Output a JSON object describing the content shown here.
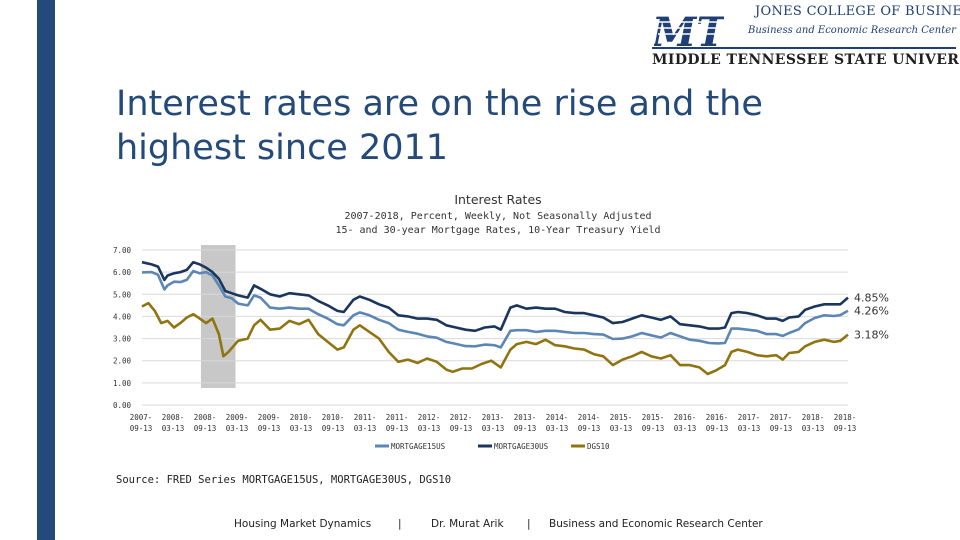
{
  "logo": {
    "line1": "JONES COLLEGE OF BUSINESS",
    "line2": "Business and Economic Research Center",
    "line3": "MIDDLE TENNESSEE STATE UNIVERSITY",
    "mark": "MT"
  },
  "slide": {
    "title_line1": "Interest rates are on the rise and the",
    "title_line2": "highest since 2011"
  },
  "colors": {
    "sidebar": "#244a7a",
    "title": "#244a7a",
    "mortgage15": "#5c86b4",
    "mortgage30": "#1b365d",
    "dgs10": "#8f7410",
    "recession": "#c8c8c8"
  },
  "chart_data": {
    "type": "line",
    "title": "Interest Rates",
    "subtitle1": "2007-2018, Percent, Weekly, Not Seasonally Adjusted",
    "subtitle2": "15- and 30-year Mortgage Rates, 10-Year Treasury Yield",
    "y_ticks": [
      "7.00",
      "6.00",
      "5.00",
      "4.00",
      "3.00",
      "2.00",
      "1.00",
      "0.00"
    ],
    "ylim": [
      0,
      7
    ],
    "xlim": [
      2007.7,
      2018.72
    ],
    "x_ticks": [
      {
        "l1": "2007-",
        "l2": "09-13"
      },
      {
        "l1": "2008-",
        "l2": "03-13"
      },
      {
        "l1": "2008-",
        "l2": "09-13"
      },
      {
        "l1": "2009-",
        "l2": "03-13"
      },
      {
        "l1": "2009-",
        "l2": "09-13"
      },
      {
        "l1": "2010-",
        "l2": "03-13"
      },
      {
        "l1": "2010-",
        "l2": "09-13"
      },
      {
        "l1": "2011-",
        "l2": "03-13"
      },
      {
        "l1": "2011-",
        "l2": "09-13"
      },
      {
        "l1": "2012-",
        "l2": "03-13"
      },
      {
        "l1": "2012-",
        "l2": "09-13"
      },
      {
        "l1": "2013-",
        "l2": "03-13"
      },
      {
        "l1": "2013-",
        "l2": "09-13"
      },
      {
        "l1": "2014-",
        "l2": "03-13"
      },
      {
        "l1": "2014-",
        "l2": "09-13"
      },
      {
        "l1": "2015-",
        "l2": "03-13"
      },
      {
        "l1": "2015-",
        "l2": "09-13"
      },
      {
        "l1": "2016-",
        "l2": "03-13"
      },
      {
        "l1": "2016-",
        "l2": "09-13"
      },
      {
        "l1": "2017-",
        "l2": "03-13"
      },
      {
        "l1": "2017-",
        "l2": "09-13"
      },
      {
        "l1": "2018-",
        "l2": "03-13"
      },
      {
        "l1": "2018-",
        "l2": "09-13"
      }
    ],
    "recession_band": [
      2008.62,
      2009.16
    ],
    "series": [
      {
        "name": "MORTGAGE15US",
        "color_key": "mortgage15",
        "end_label": "4.26%",
        "points": [
          [
            2007.7,
            5.99
          ],
          [
            2007.85,
            6.0
          ],
          [
            2007.95,
            5.88
          ],
          [
            2008.05,
            5.22
          ],
          [
            2008.1,
            5.4
          ],
          [
            2008.2,
            5.57
          ],
          [
            2008.3,
            5.55
          ],
          [
            2008.4,
            5.65
          ],
          [
            2008.5,
            6.05
          ],
          [
            2008.6,
            5.95
          ],
          [
            2008.7,
            6.0
          ],
          [
            2008.8,
            5.85
          ],
          [
            2008.9,
            5.4
          ],
          [
            2009.0,
            4.9
          ],
          [
            2009.1,
            4.82
          ],
          [
            2009.2,
            4.58
          ],
          [
            2009.35,
            4.5
          ],
          [
            2009.45,
            4.95
          ],
          [
            2009.55,
            4.85
          ],
          [
            2009.7,
            4.4
          ],
          [
            2009.85,
            4.35
          ],
          [
            2010.0,
            4.4
          ],
          [
            2010.15,
            4.35
          ],
          [
            2010.3,
            4.35
          ],
          [
            2010.45,
            4.1
          ],
          [
            2010.6,
            3.9
          ],
          [
            2010.75,
            3.65
          ],
          [
            2010.85,
            3.6
          ],
          [
            2011.0,
            4.05
          ],
          [
            2011.1,
            4.18
          ],
          [
            2011.25,
            4.05
          ],
          [
            2011.4,
            3.85
          ],
          [
            2011.55,
            3.7
          ],
          [
            2011.7,
            3.4
          ],
          [
            2011.85,
            3.3
          ],
          [
            2012.0,
            3.22
          ],
          [
            2012.15,
            3.1
          ],
          [
            2012.3,
            3.04
          ],
          [
            2012.45,
            2.85
          ],
          [
            2012.6,
            2.76
          ],
          [
            2012.75,
            2.66
          ],
          [
            2012.9,
            2.65
          ],
          [
            2013.05,
            2.73
          ],
          [
            2013.2,
            2.7
          ],
          [
            2013.3,
            2.6
          ],
          [
            2013.45,
            3.35
          ],
          [
            2013.55,
            3.38
          ],
          [
            2013.7,
            3.38
          ],
          [
            2013.85,
            3.3
          ],
          [
            2014.0,
            3.35
          ],
          [
            2014.15,
            3.35
          ],
          [
            2014.3,
            3.3
          ],
          [
            2014.45,
            3.25
          ],
          [
            2014.6,
            3.25
          ],
          [
            2014.75,
            3.2
          ],
          [
            2014.9,
            3.18
          ],
          [
            2015.05,
            2.98
          ],
          [
            2015.2,
            3.0
          ],
          [
            2015.35,
            3.1
          ],
          [
            2015.5,
            3.25
          ],
          [
            2015.65,
            3.15
          ],
          [
            2015.8,
            3.05
          ],
          [
            2015.95,
            3.25
          ],
          [
            2016.1,
            3.1
          ],
          [
            2016.25,
            2.95
          ],
          [
            2016.4,
            2.9
          ],
          [
            2016.55,
            2.8
          ],
          [
            2016.7,
            2.78
          ],
          [
            2016.8,
            2.8
          ],
          [
            2016.9,
            3.45
          ],
          [
            2017.0,
            3.45
          ],
          [
            2017.15,
            3.4
          ],
          [
            2017.3,
            3.35
          ],
          [
            2017.45,
            3.2
          ],
          [
            2017.6,
            3.2
          ],
          [
            2017.7,
            3.12
          ],
          [
            2017.8,
            3.25
          ],
          [
            2017.95,
            3.42
          ],
          [
            2018.05,
            3.7
          ],
          [
            2018.2,
            3.93
          ],
          [
            2018.35,
            4.05
          ],
          [
            2018.5,
            4.02
          ],
          [
            2018.6,
            4.06
          ],
          [
            2018.72,
            4.26
          ]
        ]
      },
      {
        "name": "MORTGAGE30US",
        "color_key": "mortgage30",
        "end_label": "4.85%",
        "points": [
          [
            2007.7,
            6.45
          ],
          [
            2007.85,
            6.35
          ],
          [
            2007.95,
            6.25
          ],
          [
            2008.05,
            5.65
          ],
          [
            2008.1,
            5.85
          ],
          [
            2008.2,
            5.95
          ],
          [
            2008.3,
            6.0
          ],
          [
            2008.4,
            6.1
          ],
          [
            2008.5,
            6.45
          ],
          [
            2008.6,
            6.35
          ],
          [
            2008.7,
            6.2
          ],
          [
            2008.8,
            6.0
          ],
          [
            2008.9,
            5.7
          ],
          [
            2009.0,
            5.15
          ],
          [
            2009.1,
            5.05
          ],
          [
            2009.2,
            4.95
          ],
          [
            2009.35,
            4.85
          ],
          [
            2009.45,
            5.4
          ],
          [
            2009.55,
            5.25
          ],
          [
            2009.7,
            5.0
          ],
          [
            2009.85,
            4.9
          ],
          [
            2010.0,
            5.05
          ],
          [
            2010.15,
            5.0
          ],
          [
            2010.3,
            4.95
          ],
          [
            2010.45,
            4.7
          ],
          [
            2010.6,
            4.5
          ],
          [
            2010.75,
            4.25
          ],
          [
            2010.85,
            4.2
          ],
          [
            2011.0,
            4.75
          ],
          [
            2011.1,
            4.9
          ],
          [
            2011.25,
            4.75
          ],
          [
            2011.4,
            4.55
          ],
          [
            2011.55,
            4.4
          ],
          [
            2011.7,
            4.05
          ],
          [
            2011.85,
            4.0
          ],
          [
            2012.0,
            3.9
          ],
          [
            2012.15,
            3.9
          ],
          [
            2012.3,
            3.85
          ],
          [
            2012.45,
            3.6
          ],
          [
            2012.6,
            3.5
          ],
          [
            2012.75,
            3.4
          ],
          [
            2012.9,
            3.35
          ],
          [
            2013.05,
            3.5
          ],
          [
            2013.2,
            3.55
          ],
          [
            2013.3,
            3.4
          ],
          [
            2013.45,
            4.4
          ],
          [
            2013.55,
            4.5
          ],
          [
            2013.7,
            4.35
          ],
          [
            2013.85,
            4.4
          ],
          [
            2014.0,
            4.35
          ],
          [
            2014.15,
            4.35
          ],
          [
            2014.3,
            4.2
          ],
          [
            2014.45,
            4.15
          ],
          [
            2014.6,
            4.15
          ],
          [
            2014.75,
            4.05
          ],
          [
            2014.9,
            3.95
          ],
          [
            2015.05,
            3.7
          ],
          [
            2015.2,
            3.75
          ],
          [
            2015.35,
            3.9
          ],
          [
            2015.5,
            4.05
          ],
          [
            2015.65,
            3.95
          ],
          [
            2015.8,
            3.85
          ],
          [
            2015.95,
            4.0
          ],
          [
            2016.1,
            3.65
          ],
          [
            2016.25,
            3.6
          ],
          [
            2016.4,
            3.55
          ],
          [
            2016.55,
            3.45
          ],
          [
            2016.7,
            3.45
          ],
          [
            2016.8,
            3.5
          ],
          [
            2016.9,
            4.15
          ],
          [
            2017.0,
            4.2
          ],
          [
            2017.15,
            4.15
          ],
          [
            2017.3,
            4.05
          ],
          [
            2017.45,
            3.9
          ],
          [
            2017.6,
            3.9
          ],
          [
            2017.7,
            3.8
          ],
          [
            2017.8,
            3.95
          ],
          [
            2017.95,
            4.0
          ],
          [
            2018.05,
            4.3
          ],
          [
            2018.2,
            4.45
          ],
          [
            2018.35,
            4.55
          ],
          [
            2018.5,
            4.55
          ],
          [
            2018.6,
            4.55
          ],
          [
            2018.72,
            4.85
          ]
        ]
      },
      {
        "name": "DGS10",
        "color_key": "dgs10",
        "end_label": "3.18%",
        "points": [
          [
            2007.7,
            4.45
          ],
          [
            2007.8,
            4.6
          ],
          [
            2007.9,
            4.25
          ],
          [
            2008.0,
            3.7
          ],
          [
            2008.1,
            3.8
          ],
          [
            2008.2,
            3.5
          ],
          [
            2008.3,
            3.7
          ],
          [
            2008.4,
            3.95
          ],
          [
            2008.5,
            4.1
          ],
          [
            2008.6,
            3.9
          ],
          [
            2008.7,
            3.7
          ],
          [
            2008.8,
            3.9
          ],
          [
            2008.9,
            3.2
          ],
          [
            2008.97,
            2.2
          ],
          [
            2009.05,
            2.4
          ],
          [
            2009.2,
            2.9
          ],
          [
            2009.35,
            3.0
          ],
          [
            2009.45,
            3.6
          ],
          [
            2009.55,
            3.85
          ],
          [
            2009.7,
            3.4
          ],
          [
            2009.85,
            3.45
          ],
          [
            2010.0,
            3.8
          ],
          [
            2010.15,
            3.65
          ],
          [
            2010.3,
            3.85
          ],
          [
            2010.45,
            3.2
          ],
          [
            2010.6,
            2.85
          ],
          [
            2010.75,
            2.5
          ],
          [
            2010.85,
            2.6
          ],
          [
            2011.0,
            3.4
          ],
          [
            2011.1,
            3.6
          ],
          [
            2011.25,
            3.3
          ],
          [
            2011.4,
            3.0
          ],
          [
            2011.55,
            2.4
          ],
          [
            2011.7,
            1.95
          ],
          [
            2011.85,
            2.05
          ],
          [
            2012.0,
            1.9
          ],
          [
            2012.15,
            2.1
          ],
          [
            2012.3,
            1.95
          ],
          [
            2012.45,
            1.6
          ],
          [
            2012.55,
            1.5
          ],
          [
            2012.7,
            1.65
          ],
          [
            2012.85,
            1.65
          ],
          [
            2013.0,
            1.85
          ],
          [
            2013.15,
            2.0
          ],
          [
            2013.3,
            1.7
          ],
          [
            2013.45,
            2.5
          ],
          [
            2013.55,
            2.75
          ],
          [
            2013.7,
            2.85
          ],
          [
            2013.85,
            2.75
          ],
          [
            2014.0,
            2.95
          ],
          [
            2014.15,
            2.7
          ],
          [
            2014.3,
            2.65
          ],
          [
            2014.45,
            2.55
          ],
          [
            2014.6,
            2.5
          ],
          [
            2014.75,
            2.3
          ],
          [
            2014.9,
            2.2
          ],
          [
            2015.05,
            1.8
          ],
          [
            2015.2,
            2.05
          ],
          [
            2015.35,
            2.2
          ],
          [
            2015.5,
            2.4
          ],
          [
            2015.65,
            2.2
          ],
          [
            2015.8,
            2.1
          ],
          [
            2015.95,
            2.25
          ],
          [
            2016.1,
            1.8
          ],
          [
            2016.25,
            1.8
          ],
          [
            2016.4,
            1.7
          ],
          [
            2016.53,
            1.4
          ],
          [
            2016.65,
            1.55
          ],
          [
            2016.8,
            1.8
          ],
          [
            2016.9,
            2.4
          ],
          [
            2017.0,
            2.5
          ],
          [
            2017.15,
            2.4
          ],
          [
            2017.3,
            2.25
          ],
          [
            2017.45,
            2.2
          ],
          [
            2017.6,
            2.25
          ],
          [
            2017.7,
            2.05
          ],
          [
            2017.8,
            2.35
          ],
          [
            2017.95,
            2.4
          ],
          [
            2018.05,
            2.65
          ],
          [
            2018.2,
            2.85
          ],
          [
            2018.35,
            2.95
          ],
          [
            2018.5,
            2.85
          ],
          [
            2018.6,
            2.9
          ],
          [
            2018.72,
            3.18
          ]
        ]
      }
    ],
    "legend_position": "bottom"
  },
  "source": "Source: FRED Series MORTGAGE15US, MORTGAGE30US, DGS10",
  "footer": {
    "left": "Housing Market Dynamics",
    "sep1": "|",
    "middle": "Dr. Murat Arik",
    "sep2": "|",
    "right": "Business and Economic Research Center"
  }
}
